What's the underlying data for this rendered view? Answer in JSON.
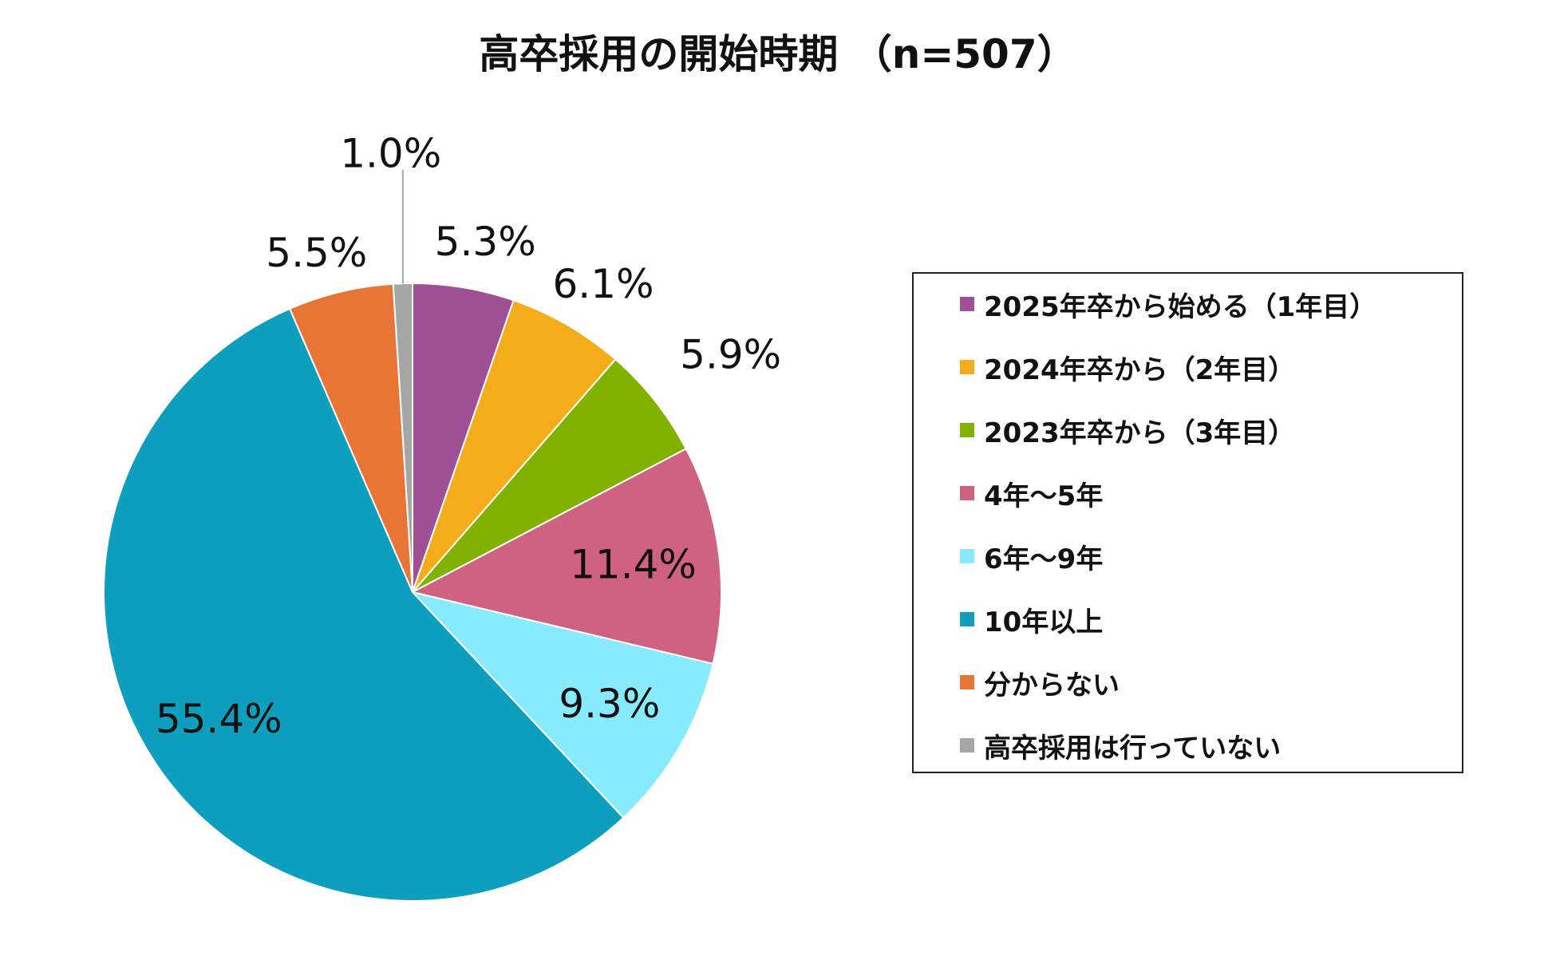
{
  "title": "高卒採用の開始時期 （n=507）",
  "chart_data": {
    "type": "pie",
    "title": "高卒採用の開始時期 （n=507）",
    "legend_position": "right",
    "start_angle": "12 o'clock, clockwise",
    "slices": [
      {
        "label": "2025年卒から始める（1年目）",
        "value": 5.3,
        "value_label": "5.3%",
        "color": "#A05195"
      },
      {
        "label": "2024年卒から（2年目）",
        "value": 6.1,
        "value_label": "6.1%",
        "color": "#F4AC1A"
      },
      {
        "label": "2023年卒から（3年目）",
        "value": 5.9,
        "value_label": "5.9%",
        "color": "#82B100"
      },
      {
        "label": "4年～5年",
        "value": 11.4,
        "value_label": "11.4%",
        "color": "#CF6281"
      },
      {
        "label": "6年～9年",
        "value": 9.3,
        "value_label": "9.3%",
        "color": "#87EAFD"
      },
      {
        "label": "10年以上",
        "value": 55.4,
        "value_label": "55.4%",
        "color": "#0E9FBE"
      },
      {
        "label": "分からない",
        "value": 5.5,
        "value_label": "5.5%",
        "color": "#E87535"
      },
      {
        "label": "高卒採用は行っていない",
        "value": 1.0,
        "value_label": "1.0%",
        "color": "#A6A6A6"
      }
    ]
  }
}
